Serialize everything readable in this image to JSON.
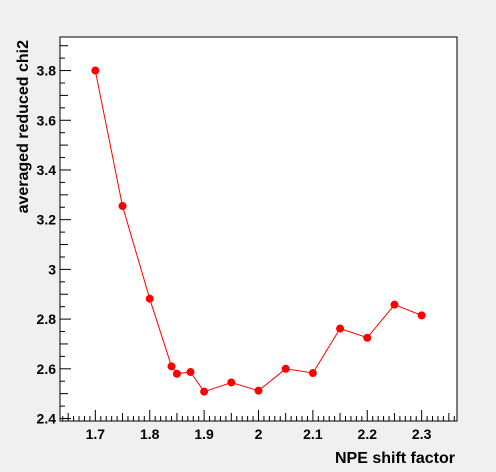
{
  "chart_data": {
    "type": "line",
    "title": "",
    "xlabel": "NPE shift factor",
    "ylabel": "averaged reduced chi2",
    "xlim": [
      1.635,
      2.365
    ],
    "ylim": [
      2.39,
      3.935
    ],
    "x_ticks": [
      "1.7",
      "1.8",
      "1.9",
      "2",
      "2.1",
      "2.2",
      "2.3"
    ],
    "y_ticks": [
      "2.4",
      "2.6",
      "2.8",
      "3",
      "3.2",
      "3.4",
      "3.6",
      "3.8"
    ],
    "grid": false,
    "legend": "none",
    "series": [
      {
        "color": "#ff0000",
        "points": [
          {
            "x": 1.7,
            "y": 3.8
          },
          {
            "x": 1.75,
            "y": 3.255
          },
          {
            "x": 1.8,
            "y": 2.882
          },
          {
            "x": 1.84,
            "y": 2.61
          },
          {
            "x": 1.85,
            "y": 2.58
          },
          {
            "x": 1.875,
            "y": 2.587
          },
          {
            "x": 1.9,
            "y": 2.508
          },
          {
            "x": 1.95,
            "y": 2.545
          },
          {
            "x": 2.0,
            "y": 2.512
          },
          {
            "x": 2.05,
            "y": 2.6
          },
          {
            "x": 2.1,
            "y": 2.583
          },
          {
            "x": 2.15,
            "y": 2.762
          },
          {
            "x": 2.2,
            "y": 2.725
          },
          {
            "x": 2.25,
            "y": 2.858
          },
          {
            "x": 2.3,
            "y": 2.815
          }
        ]
      }
    ]
  }
}
